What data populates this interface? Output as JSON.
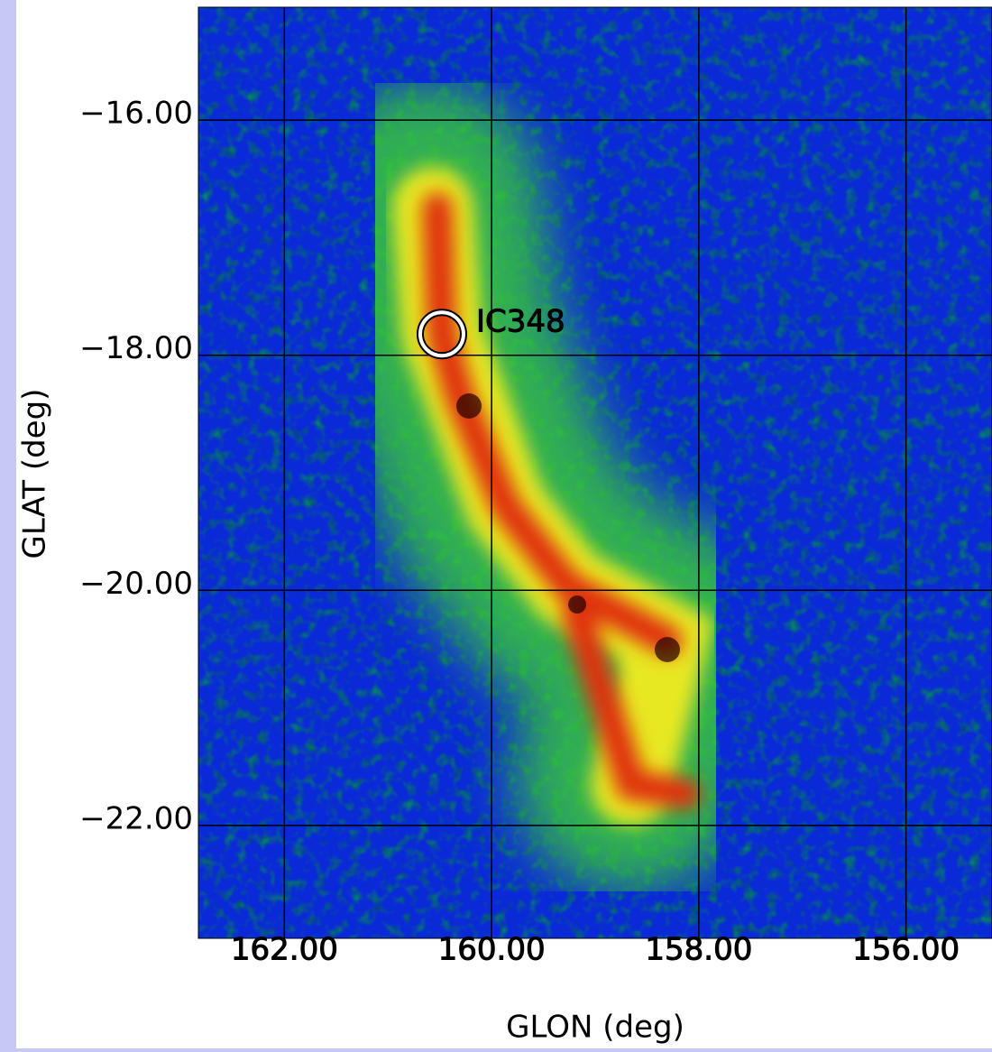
{
  "chart_data": {
    "type": "image",
    "x_label": "GLON (deg)",
    "y_label": "GLAT (deg)",
    "xlim": [
      162.83,
      155.17
    ],
    "ylim": [
      -22.96,
      -15.04
    ],
    "xticks": [
      {
        "value": 162,
        "label": "162.00"
      },
      {
        "value": 160,
        "label": "160.00"
      },
      {
        "value": 158,
        "label": "158.00"
      },
      {
        "value": 156,
        "label": "156.00"
      }
    ],
    "yticks": [
      {
        "value": -16,
        "label": "−16.00"
      },
      {
        "value": -18,
        "label": "−18.00"
      },
      {
        "value": -20,
        "label": "−20.00"
      },
      {
        "value": -22,
        "label": "−22.00"
      }
    ],
    "grid": true,
    "annotations": [
      {
        "text": "IC348",
        "x": 160.48,
        "y": -17.82
      }
    ]
  }
}
